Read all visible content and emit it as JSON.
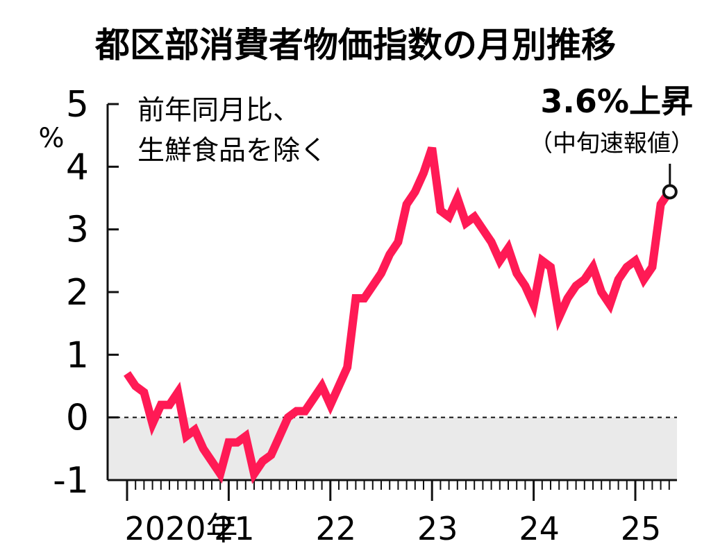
{
  "chart_data": {
    "type": "line",
    "title": "都区部消費者物価指数の月別推移",
    "note_lines": [
      "前年同月比、",
      "生鮮食品を除く"
    ],
    "yunit": "%",
    "ylim": [
      -1,
      5
    ],
    "yticks": [
      "5",
      "4",
      "3",
      "2",
      "1",
      "0",
      "-1"
    ],
    "x_tick_labels": [
      "2020年",
      "21",
      "22",
      "23",
      "24",
      "25"
    ],
    "negative_region_shaded": true,
    "zero_line": "dashed",
    "series": [
      {
        "color": "#ff1a55",
        "start": "2020-01",
        "values": [
          0.7,
          0.5,
          0.4,
          -0.1,
          0.2,
          0.2,
          0.4,
          -0.3,
          -0.2,
          -0.5,
          -0.7,
          -0.9,
          -0.4,
          -0.4,
          -0.3,
          -0.9,
          -0.7,
          -0.6,
          -0.3,
          0.0,
          0.1,
          0.1,
          0.3,
          0.5,
          0.2,
          0.5,
          0.8,
          1.9,
          1.9,
          2.1,
          2.3,
          2.6,
          2.8,
          3.4,
          3.6,
          3.9,
          4.3,
          3.3,
          3.2,
          3.5,
          3.1,
          3.2,
          3.0,
          2.8,
          2.5,
          2.7,
          2.3,
          2.1,
          1.8,
          2.5,
          2.4,
          1.6,
          1.9,
          2.1,
          2.2,
          2.4,
          2.0,
          1.8,
          2.2,
          2.4,
          2.5,
          2.2,
          2.4,
          3.4,
          3.6
        ]
      }
    ],
    "annotation": {
      "value_text": "3.6%上昇",
      "sub_text": "（中旬速報値）"
    }
  }
}
